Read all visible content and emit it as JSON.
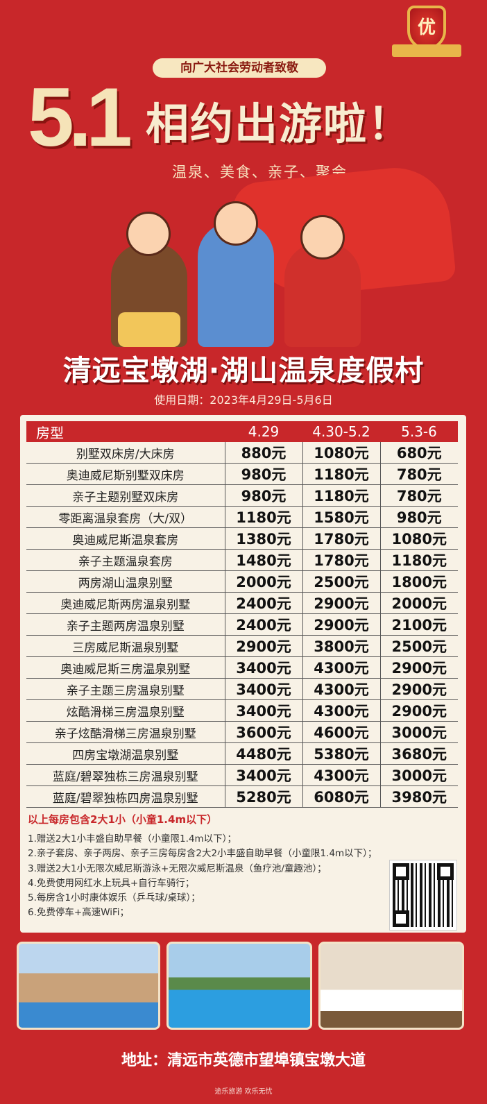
{
  "badge": {
    "label": "优"
  },
  "header": {
    "salute": "向广大社会劳动者致敬",
    "big_number": "5.1",
    "headline": "相约出游啦！",
    "tags": "温泉、美食、亲子、聚会"
  },
  "resort_name": "清远宝墩湖·湖山温泉度假村",
  "usage_dates": "使用日期：2023年4月29日-5月6日",
  "table": {
    "headers": [
      "房型",
      "4.29",
      "4.30-5.2",
      "5.3-6"
    ],
    "rows": [
      [
        "别墅双床房/大床房",
        "880元",
        "1080元",
        "680元"
      ],
      [
        "奥迪威尼斯别墅双床房",
        "980元",
        "1180元",
        "780元"
      ],
      [
        "亲子主题别墅双床房",
        "980元",
        "1180元",
        "780元"
      ],
      [
        "零距离温泉套房（大/双）",
        "1180元",
        "1580元",
        "980元"
      ],
      [
        "奥迪威尼斯温泉套房",
        "1380元",
        "1780元",
        "1080元"
      ],
      [
        "亲子主题温泉套房",
        "1480元",
        "1780元",
        "1180元"
      ],
      [
        "两房湖山温泉别墅",
        "2000元",
        "2500元",
        "1800元"
      ],
      [
        "奥迪威尼斯两房温泉别墅",
        "2400元",
        "2900元",
        "2000元"
      ],
      [
        "亲子主题两房温泉别墅",
        "2400元",
        "2900元",
        "2100元"
      ],
      [
        "三房威尼斯温泉别墅",
        "2900元",
        "3800元",
        "2500元"
      ],
      [
        "奥迪威尼斯三房温泉别墅",
        "3400元",
        "4300元",
        "2900元"
      ],
      [
        "亲子主题三房温泉别墅",
        "3400元",
        "4300元",
        "2900元"
      ],
      [
        "炫酷滑梯三房温泉别墅",
        "3400元",
        "4300元",
        "2900元"
      ],
      [
        "亲子炫酷滑梯三房温泉别墅",
        "3600元",
        "4600元",
        "3000元"
      ],
      [
        "四房宝墩湖温泉别墅",
        "4480元",
        "5380元",
        "3680元"
      ],
      [
        "蓝庭/碧翠独栋三房温泉别墅",
        "3400元",
        "4300元",
        "3000元"
      ],
      [
        "蓝庭/碧翠独栋四房温泉别墅",
        "5280元",
        "6080元",
        "3980元"
      ]
    ]
  },
  "notes": {
    "heading": "以上每房包含2大1小（小童1.4m以下）",
    "items": [
      "1.赠送2大1小丰盛自助早餐（小童限1.4m以下）；",
      "2.亲子套房、亲子两房、亲子三房每房含2大2小丰盛自助早餐（小童限1.4m以下）；",
      "3.赠送2大1小无限次威尼斯游泳+无限次威尼斯温泉（鱼疗池/童趣池）；",
      "4.免费使用网红水上玩具+自行车骑行；",
      "5.每房含1小时康体娱乐（乒乓球/桌球）；",
      "6.免费停车+高速WiFi；"
    ]
  },
  "address": "地址：清远市英德市望埠镇宝墩大道",
  "slogan": "途乐旅游  欢乐无忧",
  "colors": {
    "background": "#c8272a",
    "panel": "#f8f2e6",
    "gold": "#e8b64a"
  }
}
